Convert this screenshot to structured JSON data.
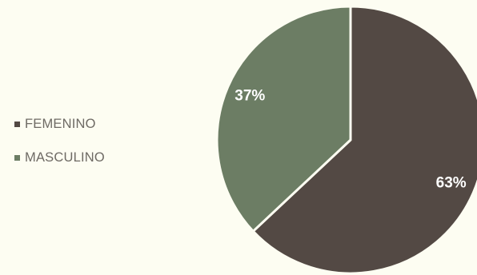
{
  "chart_data": {
    "type": "pie",
    "title": "",
    "categories": [
      "FEMENINO",
      "MASCULINO"
    ],
    "values": [
      63,
      37
    ],
    "data_labels": [
      "63%",
      "37%"
    ],
    "colors": [
      "#534944",
      "#6c7d64"
    ],
    "legend_position": "left",
    "start_angle": "12 o'clock, clockwise"
  }
}
